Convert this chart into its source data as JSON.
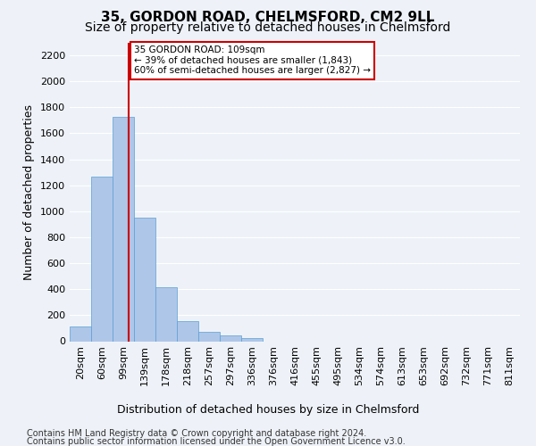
{
  "title1": "35, GORDON ROAD, CHELMSFORD, CM2 9LL",
  "title2": "Size of property relative to detached houses in Chelmsford",
  "xlabel": "Distribution of detached houses by size in Chelmsford",
  "ylabel": "Number of detached properties",
  "bin_labels": [
    "20sqm",
    "60sqm",
    "99sqm",
    "139sqm",
    "178sqm",
    "218sqm",
    "257sqm",
    "297sqm",
    "336sqm",
    "376sqm",
    "416sqm",
    "455sqm",
    "495sqm",
    "534sqm",
    "574sqm",
    "613sqm",
    "653sqm",
    "692sqm",
    "732sqm",
    "771sqm",
    "811sqm"
  ],
  "bar_values": [
    110,
    1270,
    1730,
    950,
    415,
    155,
    75,
    45,
    25,
    0,
    0,
    0,
    0,
    0,
    0,
    0,
    0,
    0,
    0,
    0,
    0
  ],
  "bar_color": "#aec6e8",
  "bar_edge_color": "#5a9fd4",
  "vline_color": "#cc0000",
  "annotation_text": "35 GORDON ROAD: 109sqm\n← 39% of detached houses are smaller (1,843)\n60% of semi-detached houses are larger (2,827) →",
  "annotation_box_color": "#ffffff",
  "annotation_border_color": "#cc0000",
  "ylim": [
    0,
    2300
  ],
  "yticks": [
    0,
    200,
    400,
    600,
    800,
    1000,
    1200,
    1400,
    1600,
    1800,
    2000,
    2200
  ],
  "footnote1": "Contains HM Land Registry data © Crown copyright and database right 2024.",
  "footnote2": "Contains public sector information licensed under the Open Government Licence v3.0.",
  "bg_color": "#eef2f8",
  "plot_bg_color": "#eef2f8",
  "grid_color": "#ffffff",
  "title_fontsize": 11,
  "subtitle_fontsize": 10,
  "axis_label_fontsize": 9,
  "tick_fontsize": 8,
  "footnote_fontsize": 7
}
